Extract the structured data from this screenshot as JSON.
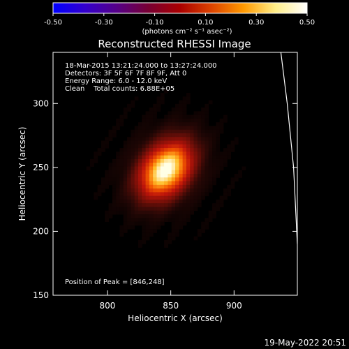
{
  "chart_data": {
    "type": "heatmap",
    "title": "Reconstructed RHESSI Image",
    "xlabel": "Heliocentric X (arcsec)",
    "ylabel": "Heliocentric Y (arcsec)",
    "xlim": [
      757,
      950
    ],
    "ylim": [
      150,
      340
    ],
    "xticks": [
      800,
      850,
      900
    ],
    "yticks": [
      150,
      200,
      250,
      300
    ],
    "colorbar": {
      "min": -0.5,
      "max": 0.5,
      "ticks": [
        "-0.50",
        "-0.30",
        "-0.10",
        "0.10",
        "0.30",
        "0.50"
      ],
      "unit_label": "(photons cm⁻² s⁻¹ asec⁻²)",
      "palette": [
        "#0000ff",
        "#3300cc",
        "#550088",
        "#770033",
        "#aa0000",
        "#dd4400",
        "#ff9900",
        "#ffee88",
        "#ffffff"
      ]
    },
    "annotations": [
      "18-Mar-2015 13:21:24.000 to 13:27:24.000",
      "Detectors: 3F 5F 6F 7F 8F 9F, Att 0",
      "Energy Range: 6.0 - 12.0 keV",
      "Clean    Total counts: 6.88E+05"
    ],
    "peak_label": "Position of Peak = [846,248]",
    "source": {
      "center": [
        846,
        248
      ],
      "peak_value": 0.5,
      "sigma_major": 17,
      "sigma_minor": 12,
      "angle_deg": 50
    },
    "limb_curve": [
      [
        937,
        340
      ],
      [
        942,
        300
      ],
      [
        947,
        250
      ],
      [
        950,
        190
      ]
    ],
    "footer": "19-May-2022 20:51"
  }
}
